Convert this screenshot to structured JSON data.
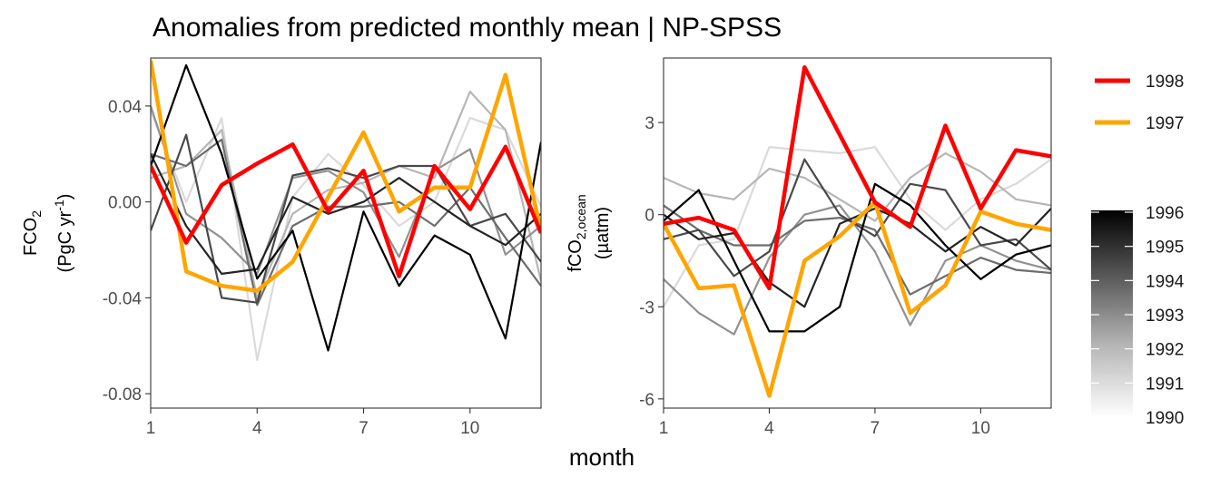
{
  "title": "Anomalies from predicted monthly mean | NP-SPSS",
  "x_label": "month",
  "colors": {
    "highlight_1998": "#ff0000",
    "highlight_1997": "#ffa500",
    "gradient_high": "#000000",
    "gradient_low": "#ffffff"
  },
  "legend": {
    "lines": [
      {
        "label": "1998",
        "color": "#ff0000"
      },
      {
        "label": "1997",
        "color": "#ffa500"
      }
    ],
    "gradient": {
      "ticks": [
        "1996",
        "1995",
        "1994",
        "1993",
        "1992",
        "1991",
        "1990"
      ],
      "range": [
        1990,
        1996
      ]
    }
  },
  "chart_data": [
    {
      "type": "line",
      "ylabel": "FCO₂ (PgC yr⁻¹)",
      "ylabel_main": "FCO",
      "ylabel_main_sub": "2",
      "ylabel_unit": "(PgC yr",
      "ylabel_unit_sup": "-1",
      "ylabel_unit_end": ")",
      "xlim": [
        1,
        12
      ],
      "ylim": [
        -0.086,
        0.06
      ],
      "x_ticks": [
        "1",
        "4",
        "7",
        "10"
      ],
      "y_ticks": [
        "0.04",
        "0.00",
        "-0.04",
        "-0.08"
      ],
      "x": [
        1,
        2,
        3,
        4,
        5,
        6,
        7,
        8,
        9,
        10,
        11,
        12
      ],
      "gray_series": [
        {
          "year": 1990,
          "values": [
            0.038,
            0.0,
            0.035,
            -0.066,
            0.002,
            0.02,
            0.007,
            -0.01,
            0.0,
            0.035,
            0.03,
            -0.002
          ]
        },
        {
          "year": 1991,
          "values": [
            0.01,
            0.015,
            0.03,
            -0.04,
            -0.005,
            0.005,
            0.008,
            0.015,
            0.01,
            0.046,
            0.03,
            -0.033
          ]
        },
        {
          "year": 1992,
          "values": [
            0.04,
            -0.005,
            -0.015,
            -0.03,
            0.01,
            0.013,
            0.004,
            -0.023,
            0.013,
            0.022,
            -0.022,
            -0.01
          ]
        },
        {
          "year": 1993,
          "values": [
            0.02,
            0.015,
            0.026,
            -0.043,
            -0.01,
            -0.002,
            -0.002,
            0.0,
            -0.01,
            0.006,
            -0.015,
            -0.035
          ]
        },
        {
          "year": 1994,
          "values": [
            -0.012,
            0.028,
            -0.04,
            -0.042,
            0.011,
            0.014,
            0.01,
            0.015,
            0.015,
            -0.01,
            -0.005,
            -0.025
          ]
        },
        {
          "year": 1995,
          "values": [
            0.02,
            -0.01,
            -0.03,
            -0.028,
            0.002,
            -0.005,
            0.0,
            0.01,
            0.0,
            -0.01,
            -0.018,
            -0.005
          ]
        },
        {
          "year": 1996,
          "values": [
            0.015,
            0.057,
            0.02,
            -0.032,
            -0.012,
            -0.062,
            -0.004,
            -0.035,
            -0.014,
            -0.022,
            -0.057,
            0.025
          ]
        }
      ],
      "series": [
        {
          "name": "1997",
          "color": "#ffa500",
          "values": [
            0.059,
            -0.029,
            -0.035,
            -0.037,
            -0.025,
            0.002,
            0.029,
            -0.004,
            0.006,
            0.006,
            0.053,
            -0.012
          ]
        },
        {
          "name": "1998",
          "color": "#ff0000",
          "values": [
            0.015,
            -0.017,
            0.007,
            0.016,
            0.024,
            -0.004,
            0.013,
            -0.031,
            0.015,
            -0.003,
            0.023,
            -0.013
          ]
        }
      ]
    },
    {
      "type": "line",
      "ylabel": "fCO₂,ocean (µatm)",
      "ylabel_main": "fCO",
      "ylabel_main_sub": "2,ocean",
      "ylabel_unit": "(µatm)",
      "xlim": [
        1,
        12
      ],
      "ylim": [
        -6.3,
        5.1
      ],
      "x_ticks": [
        "1",
        "4",
        "7",
        "10"
      ],
      "y_ticks": [
        "3",
        "0",
        "-3",
        "-6"
      ],
      "x": [
        1,
        2,
        3,
        4,
        5,
        6,
        7,
        8,
        9,
        10,
        11,
        12
      ],
      "gray_series": [
        {
          "year": 1990,
          "values": [
            -3.0,
            -1.0,
            -0.8,
            2.2,
            2.1,
            2.0,
            2.2,
            0.5,
            -0.5,
            0.5,
            1.0,
            1.8
          ]
        },
        {
          "year": 1991,
          "values": [
            1.2,
            0.7,
            0.5,
            1.5,
            1.2,
            0.5,
            -0.2,
            1.2,
            2.0,
            1.4,
            0.5,
            0.3
          ]
        },
        {
          "year": 1992,
          "values": [
            -2.1,
            -3.2,
            -3.9,
            -1.4,
            0.0,
            0.3,
            -1.2,
            -3.6,
            -1.5,
            -1.0,
            -1.5,
            -1.8
          ]
        },
        {
          "year": 1993,
          "values": [
            0.3,
            -0.5,
            -1.0,
            -1.0,
            -0.2,
            -0.1,
            -0.5,
            -2.6,
            -2.0,
            -1.4,
            -1.8,
            -1.9
          ]
        },
        {
          "year": 1994,
          "values": [
            -0.8,
            -0.5,
            -2.0,
            -1.2,
            1.8,
            0.0,
            -0.7,
            1.0,
            0.8,
            -1.0,
            -0.8,
            -1.8
          ]
        },
        {
          "year": 1995,
          "values": [
            0.0,
            -0.8,
            -0.6,
            -2.2,
            -3.0,
            -0.3,
            0.2,
            -0.3,
            -1.2,
            -0.4,
            -1.0,
            0.2
          ]
        },
        {
          "year": 1996,
          "values": [
            -0.2,
            0.8,
            -1.5,
            -3.8,
            -3.8,
            -3.0,
            1.0,
            0.3,
            -1.0,
            -2.1,
            -1.3,
            -1.0
          ]
        }
      ],
      "series": [
        {
          "name": "1997",
          "color": "#ffa500",
          "values": [
            -0.3,
            -2.4,
            -2.3,
            -5.9,
            -1.5,
            -0.7,
            0.4,
            -3.2,
            -2.3,
            0.1,
            -0.3,
            -0.5
          ]
        },
        {
          "name": "1998",
          "color": "#ff0000",
          "values": [
            -0.3,
            -0.1,
            -0.5,
            -2.4,
            4.8,
            2.6,
            0.4,
            -0.4,
            2.9,
            0.2,
            2.1,
            1.9
          ]
        }
      ]
    }
  ]
}
